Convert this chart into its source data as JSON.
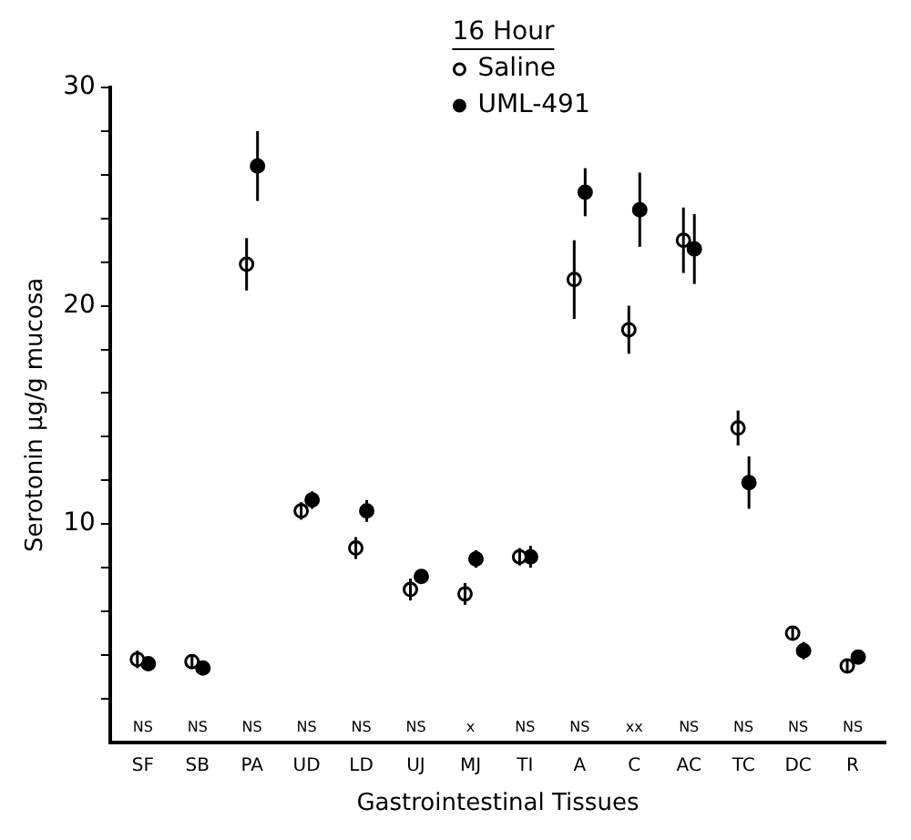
{
  "chart_data": {
    "type": "scatter",
    "legend_title": "16 Hour",
    "xlabel": "Gastrointestinal Tissues",
    "ylabel": "Serotonin μg/g mucosa",
    "categories": [
      "SF",
      "SB",
      "PA",
      "UD",
      "LD",
      "UJ",
      "MJ",
      "TI",
      "A",
      "C",
      "AC",
      "TC",
      "DC",
      "R"
    ],
    "ylim": [
      0,
      30
    ],
    "yticks": [
      {
        "value": 2,
        "label": null
      },
      {
        "value": 4,
        "label": null
      },
      {
        "value": 6,
        "label": null
      },
      {
        "value": 8,
        "label": null
      },
      10,
      {
        "value": 12,
        "label": null
      },
      {
        "value": 14,
        "label": null
      },
      {
        "value": 16,
        "label": null
      },
      {
        "value": 18,
        "label": null
      },
      20,
      {
        "value": 22,
        "label": null
      },
      {
        "value": 24,
        "label": null
      },
      {
        "value": 26,
        "label": null
      },
      {
        "value": 28,
        "label": null
      },
      30
    ],
    "series": [
      {
        "name": "Saline",
        "color": "#ffffff",
        "marker": "circle",
        "values": [
          3.8,
          3.7,
          21.9,
          10.6,
          8.9,
          7.0,
          6.8,
          8.5,
          21.2,
          18.9,
          23.0,
          14.4,
          5.0,
          3.5
        ],
        "errors": [
          0.4,
          0.3,
          1.2,
          0.4,
          0.5,
          0.5,
          0.5,
          0.4,
          1.8,
          1.1,
          1.5,
          0.8,
          0.3,
          0.3
        ]
      },
      {
        "name": "UML-491",
        "color": "#000000",
        "marker": "circle",
        "values": [
          3.6,
          3.4,
          26.4,
          11.1,
          10.6,
          7.6,
          8.4,
          8.5,
          25.2,
          24.4,
          22.6,
          11.9,
          4.2,
          3.9
        ],
        "errors": [
          0.3,
          0.3,
          1.6,
          0.4,
          0.5,
          0.3,
          0.4,
          0.5,
          1.1,
          1.7,
          1.6,
          1.2,
          0.4,
          0.3
        ]
      }
    ],
    "annotations": [
      "NS",
      "NS",
      "NS",
      "NS",
      "NS",
      "NS",
      "x",
      "NS",
      "NS",
      "xx",
      "NS",
      "NS",
      "NS",
      "NS"
    ],
    "legend": "top",
    "grid": false
  }
}
